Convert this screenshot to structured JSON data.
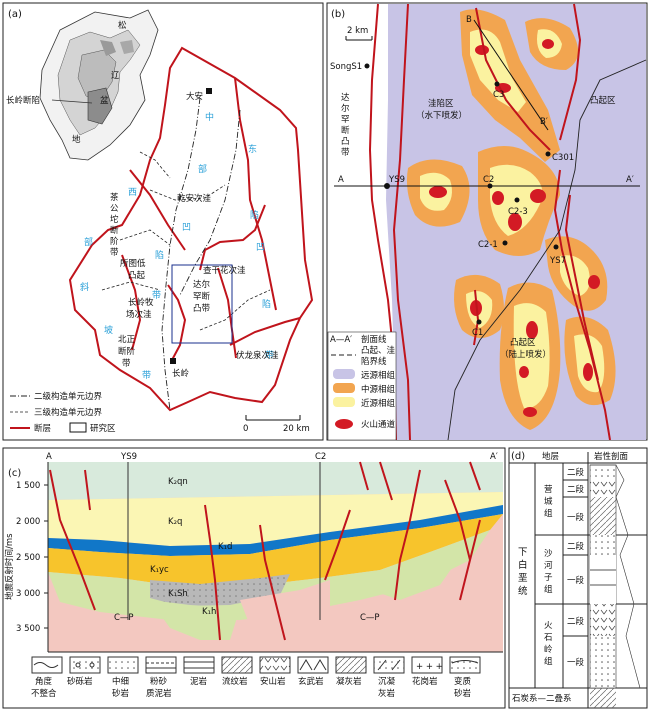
{
  "panel_a": {
    "tag": "(a)",
    "inset_labels": [
      "松",
      "辽",
      "盆",
      "地"
    ],
    "inset_left_label": "长岭断陷",
    "city_north": "大安",
    "city_south": "长岭",
    "east_zone_chars": [
      "东",
      "部",
      "凹",
      "陷",
      "带"
    ],
    "central_zone_chars": [
      "中",
      "部",
      "凹",
      "陷",
      "带"
    ],
    "west_zone_chars": [
      "西",
      "部",
      "斜",
      "坡",
      "带"
    ],
    "west_zone_chars2": [
      "部",
      "",
      "坡",
      "带"
    ],
    "sub_units": {
      "qianan": "乾安次洼",
      "chaganhua": "查干花次洼",
      "suotu": "所图低凸起",
      "changling_cm": "长岭牧场次洼",
      "fuyuquan": "伏龙泉次洼",
      "chaganhua_vert": [
        "茶",
        "公",
        "坨",
        "断",
        "阶",
        "带"
      ],
      "dalhan_vert": [
        "达",
        "尔",
        "罕",
        "断",
        "凸",
        "带"
      ],
      "beizheng_vert": [
        "北",
        "正",
        "断",
        "阶",
        "带"
      ]
    },
    "legend": [
      "二级构造单元边界",
      "三级构造单元边界",
      "断层",
      "研究区"
    ],
    "scale": {
      "zero": "0",
      "len": "20 km"
    }
  },
  "panel_b": {
    "tag": "(b)",
    "scale": "2 km",
    "wells": [
      "SongS1",
      "C3",
      "C301",
      "YS9",
      "C2",
      "C2-3",
      "C2-1",
      "YS7",
      "C1"
    ],
    "section_A": "A",
    "section_A2": "A′",
    "section_B": "B",
    "section_B2": "B′",
    "depression_label": "洼陷区",
    "depression_sub": "（水下喷发）",
    "uplift_top": "凸起区",
    "uplift_bottom": "凸起区",
    "uplift_bottom_sub": "（陆上喷发）",
    "fault_vert": [
      "达",
      "尔",
      "罕",
      "断",
      "凸",
      "带"
    ],
    "legend": [
      "剖面线",
      "凸起、洼陷界线",
      "远源相组",
      "中源相组",
      "近源相组",
      "火山通道"
    ],
    "legend_sym": "A—A′",
    "colors": {
      "distal": "#c8c4e6",
      "medial": "#f2a550",
      "proximal": "#fbf2a0",
      "vent": "#d31a24"
    }
  },
  "panel_c": {
    "tag": "(c)",
    "left_end": "A",
    "right_end": "A′",
    "well_left": "YS9",
    "well_right": "C2",
    "yaxis_title": "地震反射时间/ms",
    "yticks": [
      "1 500",
      "2 000",
      "2 500",
      "3 000",
      "3 500"
    ],
    "units": [
      "K₂qn",
      "K₂q",
      "K₁d",
      "K₁yc",
      "K₁Sh",
      "K₁h",
      "C—P",
      "C—P"
    ],
    "legend": [
      {
        "top": "角度",
        "bottom": "不整合"
      },
      {
        "top": "砂砾岩",
        "bottom": ""
      },
      {
        "top": "中细",
        "bottom": "砂岩"
      },
      {
        "top": "粉砂",
        "bottom": "质泥岩"
      },
      {
        "top": "泥岩",
        "bottom": ""
      },
      {
        "top": "流纹岩",
        "bottom": ""
      },
      {
        "top": "安山岩",
        "bottom": ""
      },
      {
        "top": "玄武岩",
        "bottom": ""
      },
      {
        "top": "凝灰岩",
        "bottom": ""
      },
      {
        "top": "沉凝",
        "bottom": "灰岩"
      },
      {
        "top": "花岗岩",
        "bottom": ""
      },
      {
        "top": "变质",
        "bottom": "砂岩"
      }
    ]
  },
  "panel_d": {
    "tag": "(d)",
    "col_strata": "地层",
    "col_profile": "岩性剖面",
    "series": "下白垩统",
    "formations": [
      "营城组",
      "沙河子组",
      "火石岭组"
    ],
    "segments": [
      "二段",
      "二段",
      "一段",
      "二段",
      "一段",
      "二段",
      "一段"
    ],
    "base": "石炭系—二叠系"
  }
}
